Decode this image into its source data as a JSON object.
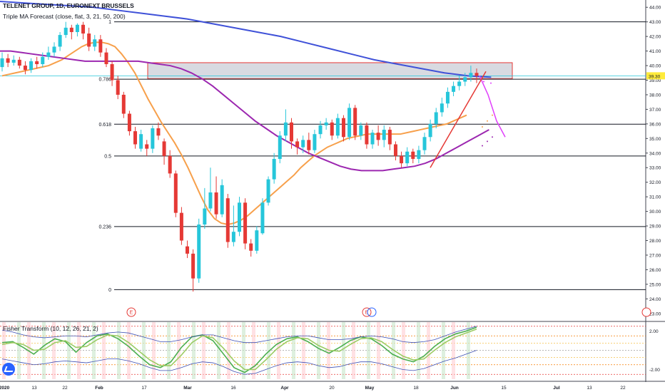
{
  "header": {
    "symbol": "TELENET GROUP, 1D, EURONEXT BRUSSELS",
    "indicator": "Triple MA Forecast (close, flat, 3, 21, 50, 200)",
    "lower_indicator": "Fisher Transform (10, 12, 26, 21, 2)"
  },
  "chart_data": [
    {
      "type": "candlestick",
      "title": "TELENET GROUP, 1D, EURONEXT BRUSSELS",
      "ylim": [
        22.5,
        44.5
      ],
      "y_ticks": [
        "44.00",
        "43.00",
        "42.00",
        "41.00",
        "40.00",
        "39.00",
        "38.00",
        "37.00",
        "36.00",
        "35.00",
        "34.00",
        "33.00",
        "32.00",
        "31.00",
        "30.00",
        "29.00",
        "28.00",
        "27.00",
        "26.00",
        "25.00",
        "24.00",
        "23.00"
      ],
      "x_ticks": [
        "2020",
        "13",
        "22",
        "Feb",
        "17",
        "Mar",
        "16",
        "Apr",
        "20",
        "May",
        "18",
        "Jun",
        "15",
        "Jul",
        "13",
        "22"
      ],
      "last_price": "39.30",
      "candles": [
        {
          "o": 39.9,
          "c": 40.5,
          "h": 40.9,
          "l": 39.6
        },
        {
          "o": 40.5,
          "c": 40.2,
          "h": 40.8,
          "l": 39.9
        },
        {
          "o": 40.2,
          "c": 40.4,
          "h": 40.7,
          "l": 40.0
        },
        {
          "o": 40.4,
          "c": 40.0,
          "h": 40.6,
          "l": 39.8
        },
        {
          "o": 40.0,
          "c": 39.7,
          "h": 40.3,
          "l": 39.4
        },
        {
          "o": 39.7,
          "c": 40.3,
          "h": 40.5,
          "l": 39.5
        },
        {
          "o": 40.3,
          "c": 40.1,
          "h": 40.6,
          "l": 39.8
        },
        {
          "o": 40.1,
          "c": 40.6,
          "h": 40.9,
          "l": 39.9
        },
        {
          "o": 40.6,
          "c": 40.9,
          "h": 41.3,
          "l": 40.4
        },
        {
          "o": 40.9,
          "c": 41.3,
          "h": 41.6,
          "l": 40.6
        },
        {
          "o": 41.3,
          "c": 42.1,
          "h": 42.3,
          "l": 41.0
        },
        {
          "o": 42.1,
          "c": 42.6,
          "h": 43.0,
          "l": 41.9
        },
        {
          "o": 42.6,
          "c": 42.3,
          "h": 42.8,
          "l": 41.8
        },
        {
          "o": 42.3,
          "c": 42.8,
          "h": 42.9,
          "l": 42.0
        },
        {
          "o": 42.8,
          "c": 42.2,
          "h": 43.0,
          "l": 41.8
        },
        {
          "o": 42.2,
          "c": 41.3,
          "h": 42.6,
          "l": 41.0
        },
        {
          "o": 41.3,
          "c": 41.8,
          "h": 42.1,
          "l": 41.0
        },
        {
          "o": 41.8,
          "c": 40.9,
          "h": 42.1,
          "l": 40.6
        },
        {
          "o": 40.9,
          "c": 40.1,
          "h": 41.2,
          "l": 39.9
        },
        {
          "o": 40.1,
          "c": 39.0,
          "h": 40.3,
          "l": 38.6
        },
        {
          "o": 39.0,
          "c": 38.0,
          "h": 39.3,
          "l": 37.7
        },
        {
          "o": 38.0,
          "c": 36.7,
          "h": 38.2,
          "l": 36.4
        },
        {
          "o": 36.7,
          "c": 35.5,
          "h": 36.9,
          "l": 35.2
        },
        {
          "o": 35.5,
          "c": 34.6,
          "h": 35.8,
          "l": 34.3
        },
        {
          "o": 34.3,
          "c": 35.3,
          "h": 35.6,
          "l": 34.1
        },
        {
          "o": 34.6,
          "c": 34.3,
          "h": 34.9,
          "l": 33.8
        },
        {
          "o": 34.3,
          "c": 35.7,
          "h": 35.9,
          "l": 34.0
        },
        {
          "o": 35.7,
          "c": 35.2,
          "h": 36.1,
          "l": 34.9
        },
        {
          "o": 34.8,
          "c": 33.8,
          "h": 35.0,
          "l": 33.2
        },
        {
          "o": 33.8,
          "c": 32.6,
          "h": 34.2,
          "l": 32.3
        },
        {
          "o": 32.6,
          "c": 29.9,
          "h": 32.8,
          "l": 29.6
        },
        {
          "o": 29.9,
          "c": 28.0,
          "h": 30.3,
          "l": 27.7
        },
        {
          "o": 27.6,
          "c": 27.1,
          "h": 28.0,
          "l": 26.8
        },
        {
          "o": 27.1,
          "c": 25.4,
          "h": 27.4,
          "l": 24.5
        },
        {
          "o": 25.4,
          "c": 29.1,
          "h": 29.5,
          "l": 25.1
        },
        {
          "o": 29.1,
          "c": 30.2,
          "h": 31.6,
          "l": 28.8
        },
        {
          "o": 30.2,
          "c": 31.3,
          "h": 33.0,
          "l": 30.0
        },
        {
          "o": 31.3,
          "c": 29.8,
          "h": 32.4,
          "l": 29.5
        },
        {
          "o": 29.8,
          "c": 31.8,
          "h": 32.2,
          "l": 29.6
        },
        {
          "o": 30.9,
          "c": 27.9,
          "h": 31.2,
          "l": 27.5
        },
        {
          "o": 27.9,
          "c": 28.6,
          "h": 30.4,
          "l": 27.6
        },
        {
          "o": 28.6,
          "c": 30.6,
          "h": 31.0,
          "l": 28.3
        },
        {
          "o": 30.6,
          "c": 27.8,
          "h": 30.9,
          "l": 27.4
        },
        {
          "o": 27.8,
          "c": 27.3,
          "h": 28.1,
          "l": 26.9
        },
        {
          "o": 27.3,
          "c": 28.7,
          "h": 29.0,
          "l": 27.1
        },
        {
          "o": 28.5,
          "c": 30.6,
          "h": 30.9,
          "l": 28.4
        },
        {
          "o": 30.6,
          "c": 32.2,
          "h": 32.4,
          "l": 30.4
        },
        {
          "o": 32.2,
          "c": 33.6,
          "h": 34.0,
          "l": 31.9
        },
        {
          "o": 33.6,
          "c": 35.2,
          "h": 35.5,
          "l": 33.3
        },
        {
          "o": 35.2,
          "c": 36.1,
          "h": 37.0,
          "l": 34.8
        },
        {
          "o": 36.1,
          "c": 34.8,
          "h": 36.4,
          "l": 34.3
        },
        {
          "o": 34.8,
          "c": 34.4,
          "h": 35.0,
          "l": 33.9
        },
        {
          "o": 34.4,
          "c": 34.9,
          "h": 35.2,
          "l": 34.0
        },
        {
          "o": 34.9,
          "c": 34.2,
          "h": 35.4,
          "l": 33.9
        },
        {
          "o": 34.2,
          "c": 35.3,
          "h": 35.6,
          "l": 34.0
        },
        {
          "o": 35.3,
          "c": 35.9,
          "h": 36.2,
          "l": 35.0
        },
        {
          "o": 35.9,
          "c": 36.1,
          "h": 36.4,
          "l": 35.6
        },
        {
          "o": 36.1,
          "c": 35.2,
          "h": 36.3,
          "l": 34.9
        },
        {
          "o": 35.2,
          "c": 36.4,
          "h": 36.7,
          "l": 35.0
        },
        {
          "o": 36.4,
          "c": 35.1,
          "h": 36.6,
          "l": 34.8
        },
        {
          "o": 35.1,
          "c": 37.1,
          "h": 37.4,
          "l": 34.9
        },
        {
          "o": 37.1,
          "c": 35.2,
          "h": 37.3,
          "l": 34.9
        },
        {
          "o": 35.2,
          "c": 35.9,
          "h": 36.1,
          "l": 34.9
        },
        {
          "o": 35.9,
          "c": 34.6,
          "h": 36.1,
          "l": 34.3
        },
        {
          "o": 34.6,
          "c": 35.4,
          "h": 35.6,
          "l": 34.3
        },
        {
          "o": 35.4,
          "c": 34.9,
          "h": 35.9,
          "l": 34.5
        },
        {
          "o": 34.9,
          "c": 35.6,
          "h": 35.9,
          "l": 34.4
        },
        {
          "o": 35.6,
          "c": 34.6,
          "h": 35.8,
          "l": 34.2
        },
        {
          "o": 34.6,
          "c": 33.8,
          "h": 34.8,
          "l": 33.5
        },
        {
          "o": 33.8,
          "c": 33.3,
          "h": 34.1,
          "l": 33.0
        },
        {
          "o": 33.3,
          "c": 34.1,
          "h": 34.4,
          "l": 33.1
        },
        {
          "o": 34.1,
          "c": 33.6,
          "h": 34.3,
          "l": 33.3
        },
        {
          "o": 33.6,
          "c": 34.2,
          "h": 34.5,
          "l": 33.3
        },
        {
          "o": 34.2,
          "c": 35.1,
          "h": 35.4,
          "l": 33.9
        },
        {
          "o": 35.1,
          "c": 36.0,
          "h": 36.3,
          "l": 34.8
        },
        {
          "o": 36.0,
          "c": 36.8,
          "h": 37.1,
          "l": 35.7
        },
        {
          "o": 36.8,
          "c": 37.4,
          "h": 37.8,
          "l": 36.5
        },
        {
          "o": 37.4,
          "c": 38.2,
          "h": 38.5,
          "l": 37.1
        },
        {
          "o": 38.2,
          "c": 38.6,
          "h": 38.9,
          "l": 37.9
        },
        {
          "o": 38.6,
          "c": 38.9,
          "h": 39.3,
          "l": 38.3
        },
        {
          "o": 38.9,
          "c": 39.2,
          "h": 39.5,
          "l": 38.6
        },
        {
          "o": 39.2,
          "c": 39.5,
          "h": 40.0,
          "l": 38.9
        },
        {
          "o": 39.5,
          "c": 39.3,
          "h": 39.8,
          "l": 38.8
        }
      ],
      "fib_levels": [
        {
          "label": "1",
          "price": 43.0
        },
        {
          "label": "0.786",
          "price": 39.07
        },
        {
          "label": "0.618",
          "price": 35.98
        },
        {
          "label": "0.5",
          "price": 33.8
        },
        {
          "label": "0.236",
          "price": 28.96
        },
        {
          "label": "0",
          "price": 24.63
        }
      ],
      "zone": {
        "top": 40.2,
        "bottom": 39.1,
        "color": "#d1d4dc",
        "border": "#e53935"
      },
      "series": [
        {
          "color": "#f7a04b",
          "values": [
            39.3,
            39.4,
            39.5,
            39.6,
            39.7,
            39.8,
            39.9,
            40.0,
            40.2,
            40.4,
            40.7,
            41.0,
            41.3,
            41.5,
            41.6,
            41.6,
            41.5,
            41.3,
            40.8,
            40.2,
            39.5,
            38.6,
            37.7,
            36.9,
            36.1,
            35.4,
            34.7,
            33.9,
            33.0,
            32.0,
            31.0,
            30.1,
            29.5,
            29.2,
            29.1,
            29.2,
            29.4,
            29.7,
            30.1,
            30.5,
            30.9,
            31.3,
            31.7,
            32.1,
            32.5,
            33.0,
            33.4,
            33.8,
            34.1,
            34.4,
            34.6,
            34.8,
            35.0,
            35.1,
            35.2,
            35.3,
            35.3,
            35.3,
            35.3,
            35.3,
            35.3,
            35.4,
            35.5,
            35.6,
            35.7,
            35.8,
            35.9,
            36.0,
            36.2,
            36.4,
            36.6
          ]
        },
        {
          "color": "#9c27b0",
          "values": [
            41.0,
            41.0,
            40.9,
            40.8,
            40.7,
            40.6,
            40.5,
            40.4,
            40.3,
            40.3,
            40.3,
            40.3,
            40.3,
            40.3,
            40.2,
            40.1,
            40.0,
            39.8,
            39.5,
            39.1,
            38.6,
            38.0,
            37.4,
            36.8,
            36.2,
            35.7,
            35.2,
            34.8,
            34.4,
            34.0,
            33.7,
            33.4,
            33.1,
            32.9,
            32.8,
            32.8,
            32.8,
            32.9,
            33.0,
            33.1,
            33.3,
            33.6,
            34.0,
            34.4,
            34.8,
            35.2,
            35.6
          ]
        },
        {
          "color": "#3f51d8",
          "values": [
            44.4,
            44.3,
            44.2,
            44.1,
            44.0,
            43.8,
            43.6,
            43.4,
            43.2,
            42.9,
            42.6,
            42.3,
            42.0,
            41.6,
            41.2,
            40.8,
            40.4,
            40.1,
            39.8,
            39.5,
            39.3,
            39.2
          ]
        }
      ],
      "forecast": [
        {
          "color": "#e040fb",
          "values": [
            39.3,
            38.0,
            36.2,
            35.1
          ]
        }
      ],
      "trendline": {
        "color": "#e53935",
        "from": 33.0,
        "to": 39.6
      },
      "events": [
        "E",
        "E"
      ]
    },
    {
      "type": "line",
      "title": "Fisher Transform (10, 12, 26, 21, 2)",
      "y_ticks": [
        "2.00",
        "-2.00"
      ],
      "series": [
        {
          "color": "#4caf50",
          "values": [
            0.8,
            0.9,
            0.3,
            -0.4,
            0.5,
            1.2,
            0.9,
            -0.2,
            0.8,
            1.5,
            1.7,
            1.2,
            0.4,
            -0.6,
            -1.5,
            -1.8,
            -1.2,
            0.3,
            1.4,
            1.6,
            1.0,
            -0.4,
            -1.8,
            -2.3,
            -1.6,
            -0.4,
            0.6,
            1.2,
            1.4,
            0.9,
            0.2,
            -0.3,
            0.3,
            1.0,
            1.4,
            1.2,
            0.5,
            -0.4,
            -0.9,
            -1.2,
            -0.6,
            0.4,
            1.2,
            1.7,
            2.0,
            2.4
          ]
        },
        {
          "color": "#9ccc65",
          "values": [
            0.6,
            0.8,
            0.6,
            0.0,
            0.1,
            0.8,
            1.0,
            0.3,
            0.4,
            1.1,
            1.6,
            1.5,
            0.8,
            -0.1,
            -1.0,
            -1.6,
            -1.6,
            -0.5,
            0.8,
            1.5,
            1.3,
            0.2,
            -1.1,
            -2.0,
            -2.0,
            -1.0,
            0.1,
            0.9,
            1.3,
            1.2,
            0.5,
            0.0,
            -0.1,
            0.6,
            1.2,
            1.3,
            0.9,
            0.1,
            -0.6,
            -1.0,
            -0.9,
            0.0,
            0.8,
            1.4,
            1.8,
            2.2
          ]
        },
        {
          "color": "#3f51b5",
          "values": [
            2.1,
            1.9,
            1.6,
            1.4,
            1.3,
            1.4,
            1.5,
            1.5,
            1.4,
            1.6,
            1.8,
            1.9,
            1.8,
            1.5,
            1.2,
            0.9,
            0.9,
            1.1,
            1.4,
            1.6,
            1.6,
            1.3,
            1.0,
            0.8,
            0.8,
            1.0,
            1.2,
            1.4,
            1.5,
            1.5,
            1.3,
            1.1,
            1.1,
            1.2,
            1.4,
            1.5,
            1.4,
            1.2,
            0.9,
            0.8,
            0.9,
            1.1,
            1.5,
            1.9,
            2.2,
            2.5
          ]
        },
        {
          "color": "#3f51b5",
          "values": [
            -0.9,
            -1.1,
            -1.3,
            -1.5,
            -1.4,
            -1.2,
            -1.1,
            -1.2,
            -1.3,
            -1.1,
            -0.9,
            -0.9,
            -1.1,
            -1.4,
            -1.8,
            -2.1,
            -2.1,
            -1.8,
            -1.4,
            -1.2,
            -1.3,
            -1.7,
            -2.2,
            -2.5,
            -2.4,
            -2.0,
            -1.6,
            -1.3,
            -1.2,
            -1.3,
            -1.6,
            -1.8,
            -1.7,
            -1.4,
            -1.2,
            -1.2,
            -1.4,
            -1.7,
            -2.0,
            -2.1,
            -1.9,
            -1.5,
            -1.1,
            -0.8,
            -0.4,
            0.0
          ]
        }
      ],
      "levels": [
        {
          "value": 2.5,
          "color": "#e53935"
        },
        {
          "value": 1.5,
          "color": "#f57c00"
        },
        {
          "value": 0.75,
          "color": "#f5c04b"
        },
        {
          "value": 0.0,
          "color": "#9e9e9e"
        },
        {
          "value": -0.75,
          "color": "#f5c04b"
        },
        {
          "value": -1.5,
          "color": "#f57c00"
        },
        {
          "value": -2.5,
          "color": "#e53935"
        }
      ]
    }
  ]
}
